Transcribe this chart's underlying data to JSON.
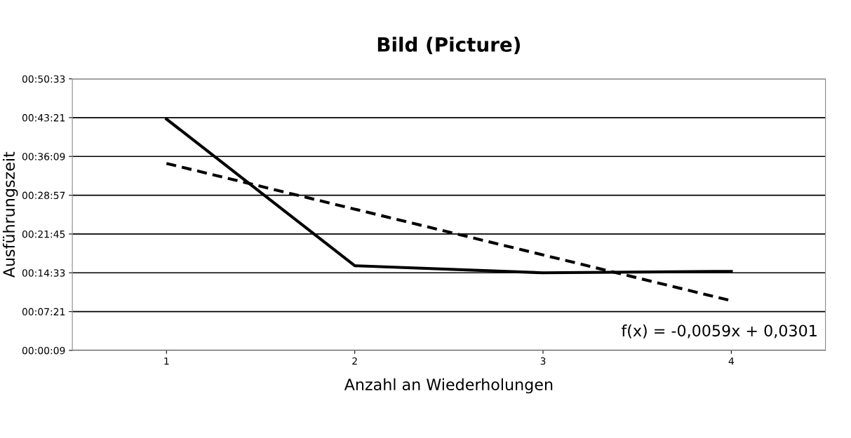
{
  "chart_data": {
    "type": "line",
    "title": "Bild (Picture)",
    "xlabel": "Anzahl an Wiederholungen",
    "ylabel": "Ausführungszeit",
    "x": [
      1,
      2,
      3,
      4
    ],
    "xlim": [
      0.5,
      4.5
    ],
    "xticks": [
      1,
      2,
      3,
      4
    ],
    "ylim": [
      9,
      3033
    ],
    "yticks": [
      {
        "value": 9,
        "label": "00:00:09"
      },
      {
        "value": 441,
        "label": "00:07:21"
      },
      {
        "value": 873,
        "label": "00:14:33"
      },
      {
        "value": 1305,
        "label": "00:21:45"
      },
      {
        "value": 1737,
        "label": "00:28:57"
      },
      {
        "value": 2169,
        "label": "00:36:09"
      },
      {
        "value": 2601,
        "label": "00:43:21"
      },
      {
        "value": 3033,
        "label": "00:50:33"
      }
    ],
    "grid": "y",
    "marker": "none",
    "series": [
      {
        "color": "#000000",
        "line_style": "solid",
        "values": [
          2585,
          952,
          873,
          889
        ]
      },
      {
        "color": "#000000",
        "line_style": "dashed",
        "values": [
          2091,
          1582,
          1072,
          562
        ]
      }
    ],
    "annotations": [
      "f(x) = -0,0059x + 0,0301"
    ]
  }
}
